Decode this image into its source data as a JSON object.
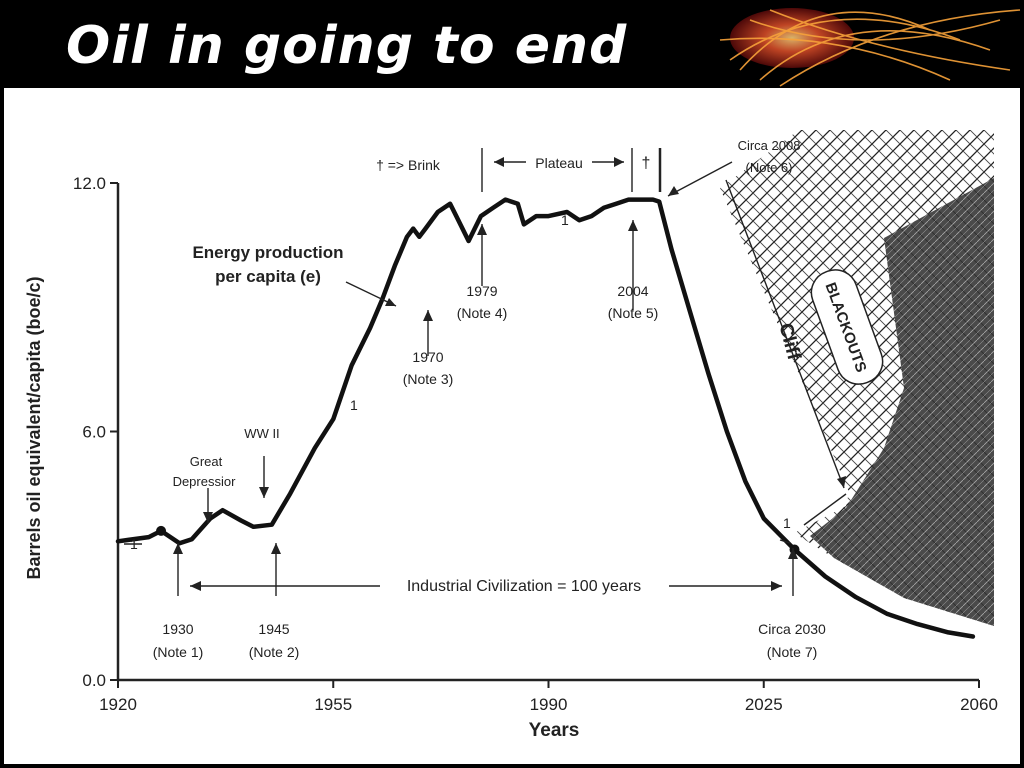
{
  "slide": {
    "title": "Oil in going to end"
  },
  "chart_data": {
    "type": "line",
    "xlabel": "Years",
    "ylabel": "Barrels oil equivalent/capita (boe/c)",
    "xlim": [
      1920,
      2060
    ],
    "ylim": [
      0,
      12
    ],
    "x_ticks": [
      "1920",
      "1955",
      "1990",
      "2025",
      "2060"
    ],
    "y_ticks": [
      "0.0",
      "6.0",
      "12.0"
    ],
    "grid": false,
    "series": [
      {
        "name": "Energy production per capita (e)",
        "points": [
          [
            1920,
            3.35
          ],
          [
            1925,
            3.45
          ],
          [
            1927,
            3.6
          ],
          [
            1930,
            3.3
          ],
          [
            1932,
            3.4
          ],
          [
            1935,
            3.9
          ],
          [
            1937,
            4.1
          ],
          [
            1940,
            3.85
          ],
          [
            1942,
            3.7
          ],
          [
            1945,
            3.75
          ],
          [
            1948,
            4.5
          ],
          [
            1952,
            5.6
          ],
          [
            1955,
            6.3
          ],
          [
            1958,
            7.6
          ],
          [
            1961,
            8.5
          ],
          [
            1963,
            9.2
          ],
          [
            1965,
            10.0
          ],
          [
            1967,
            10.7
          ],
          [
            1968,
            10.9
          ],
          [
            1969,
            10.7
          ],
          [
            1970,
            10.9
          ],
          [
            1972,
            11.3
          ],
          [
            1974,
            11.5
          ],
          [
            1975,
            11.2
          ],
          [
            1977,
            10.6
          ],
          [
            1978,
            10.9
          ],
          [
            1979,
            11.2
          ],
          [
            1981,
            11.4
          ],
          [
            1983,
            11.6
          ],
          [
            1985,
            11.5
          ],
          [
            1986,
            11.0
          ],
          [
            1988,
            11.2
          ],
          [
            1990,
            11.2
          ],
          [
            1993,
            11.3
          ],
          [
            1995,
            11.1
          ],
          [
            1997,
            11.2
          ],
          [
            1999,
            11.4
          ],
          [
            2001,
            11.5
          ],
          [
            2003,
            11.6
          ],
          [
            2005,
            11.6
          ],
          [
            2007,
            11.6
          ],
          [
            2008,
            11.55
          ],
          [
            2010,
            10.4
          ],
          [
            2013,
            8.9
          ],
          [
            2016,
            7.4
          ],
          [
            2019,
            6.0
          ],
          [
            2022,
            4.8
          ],
          [
            2025,
            3.9
          ],
          [
            2028,
            3.45
          ],
          [
            2030,
            3.15
          ],
          [
            2035,
            2.5
          ],
          [
            2040,
            2.0
          ],
          [
            2045,
            1.6
          ],
          [
            2050,
            1.35
          ],
          [
            2055,
            1.15
          ],
          [
            2059,
            1.05
          ]
        ]
      }
    ],
    "annotations": {
      "energy_label_line1": "Energy production",
      "energy_label_line2": "per capita (e)",
      "brink_marker": "† => Brink",
      "plateau": "Plateau",
      "dagger": "†",
      "marker_one": "1",
      "circa2008_line1": "Circa 2008",
      "circa2008_line2": "(Note 6)",
      "ww2": "WW II",
      "great_depression_line1": "Great",
      "great_depression_line2": "Depressior",
      "y1970": "1970",
      "note3": "(Note 3)",
      "y1979": "1979",
      "note4": "(Note 4)",
      "y2004": "2004",
      "note5": "(Note 5)",
      "y1930": "1930",
      "note1": "(Note 1)",
      "y1945": "1945",
      "note2": "(Note 2)",
      "circa2030_line1": "Circa 2030",
      "circa2030_line2": "(Note 7)",
      "industrial": "Industrial Civilization = 100 years",
      "cliff": "Cliff",
      "blackouts": "BLACKOUTS"
    }
  }
}
